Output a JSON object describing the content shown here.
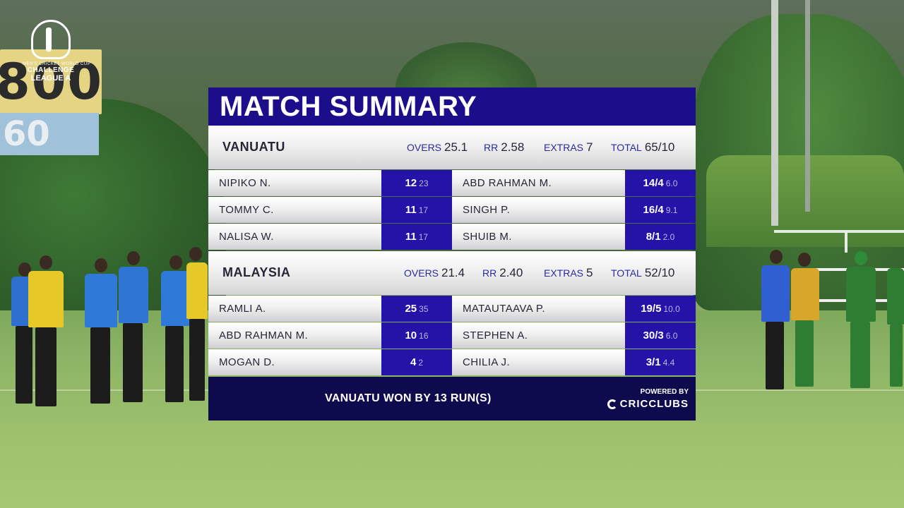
{
  "overlay": {
    "title": "MATCH SUMMARY",
    "result": "VANUATU WON BY 13 RUN(S)",
    "powered_by": "POWERED BY",
    "brand": "CRICCLUBS"
  },
  "labels": {
    "overs": "OVERS",
    "rr": "RR",
    "extras": "EXTRAS",
    "total": "TOTAL"
  },
  "innings": [
    {
      "team": "VANUATU",
      "overs": "25.1",
      "rr": "2.58",
      "extras": "7",
      "total": "65/10",
      "batting": [
        {
          "name": "NIPIKO N.",
          "runs": "12",
          "balls": "23"
        },
        {
          "name": "TOMMY C.",
          "runs": "11",
          "balls": "17"
        },
        {
          "name": "NALISA W.",
          "runs": "11",
          "balls": "17"
        }
      ],
      "bowling": [
        {
          "name": "ABD RAHMAN M.",
          "figures": "14/4",
          "overs": "6.0"
        },
        {
          "name": "SINGH P.",
          "figures": "16/4",
          "overs": "9.1"
        },
        {
          "name": "SHUIB M.",
          "figures": "8/1",
          "overs": "2.0"
        }
      ]
    },
    {
      "team": "MALAYSIA",
      "overs": "21.4",
      "rr": "2.40",
      "extras": "5",
      "total": "52/10",
      "batting": [
        {
          "name": "RAMLI A.",
          "runs": "25",
          "balls": "35"
        },
        {
          "name": "ABD RAHMAN M.",
          "runs": "10",
          "balls": "16"
        },
        {
          "name": "MOGAN D.",
          "runs": "4",
          "balls": "2"
        }
      ],
      "bowling": [
        {
          "name": "MATAUTAAVA P.",
          "figures": "19/5",
          "overs": "10.0"
        },
        {
          "name": "STEPHEN A.",
          "figures": "30/3",
          "overs": "6.0"
        },
        {
          "name": "CHILIA J.",
          "figures": "3/1",
          "overs": "4.4"
        }
      ]
    }
  ],
  "background": {
    "billboard_number": "800",
    "billboard_number_2": "60",
    "logo_top": "MEN'S CRICKET WORLD CUP",
    "logo_mid": "CHALLENGE",
    "logo_bottom": "LEAGUE A"
  },
  "colors": {
    "header_blue": "#1c0e8a",
    "figure_blue": "#2512a6",
    "footer_navy": "#0e0a4e",
    "label_blue": "#2a2aa0"
  }
}
